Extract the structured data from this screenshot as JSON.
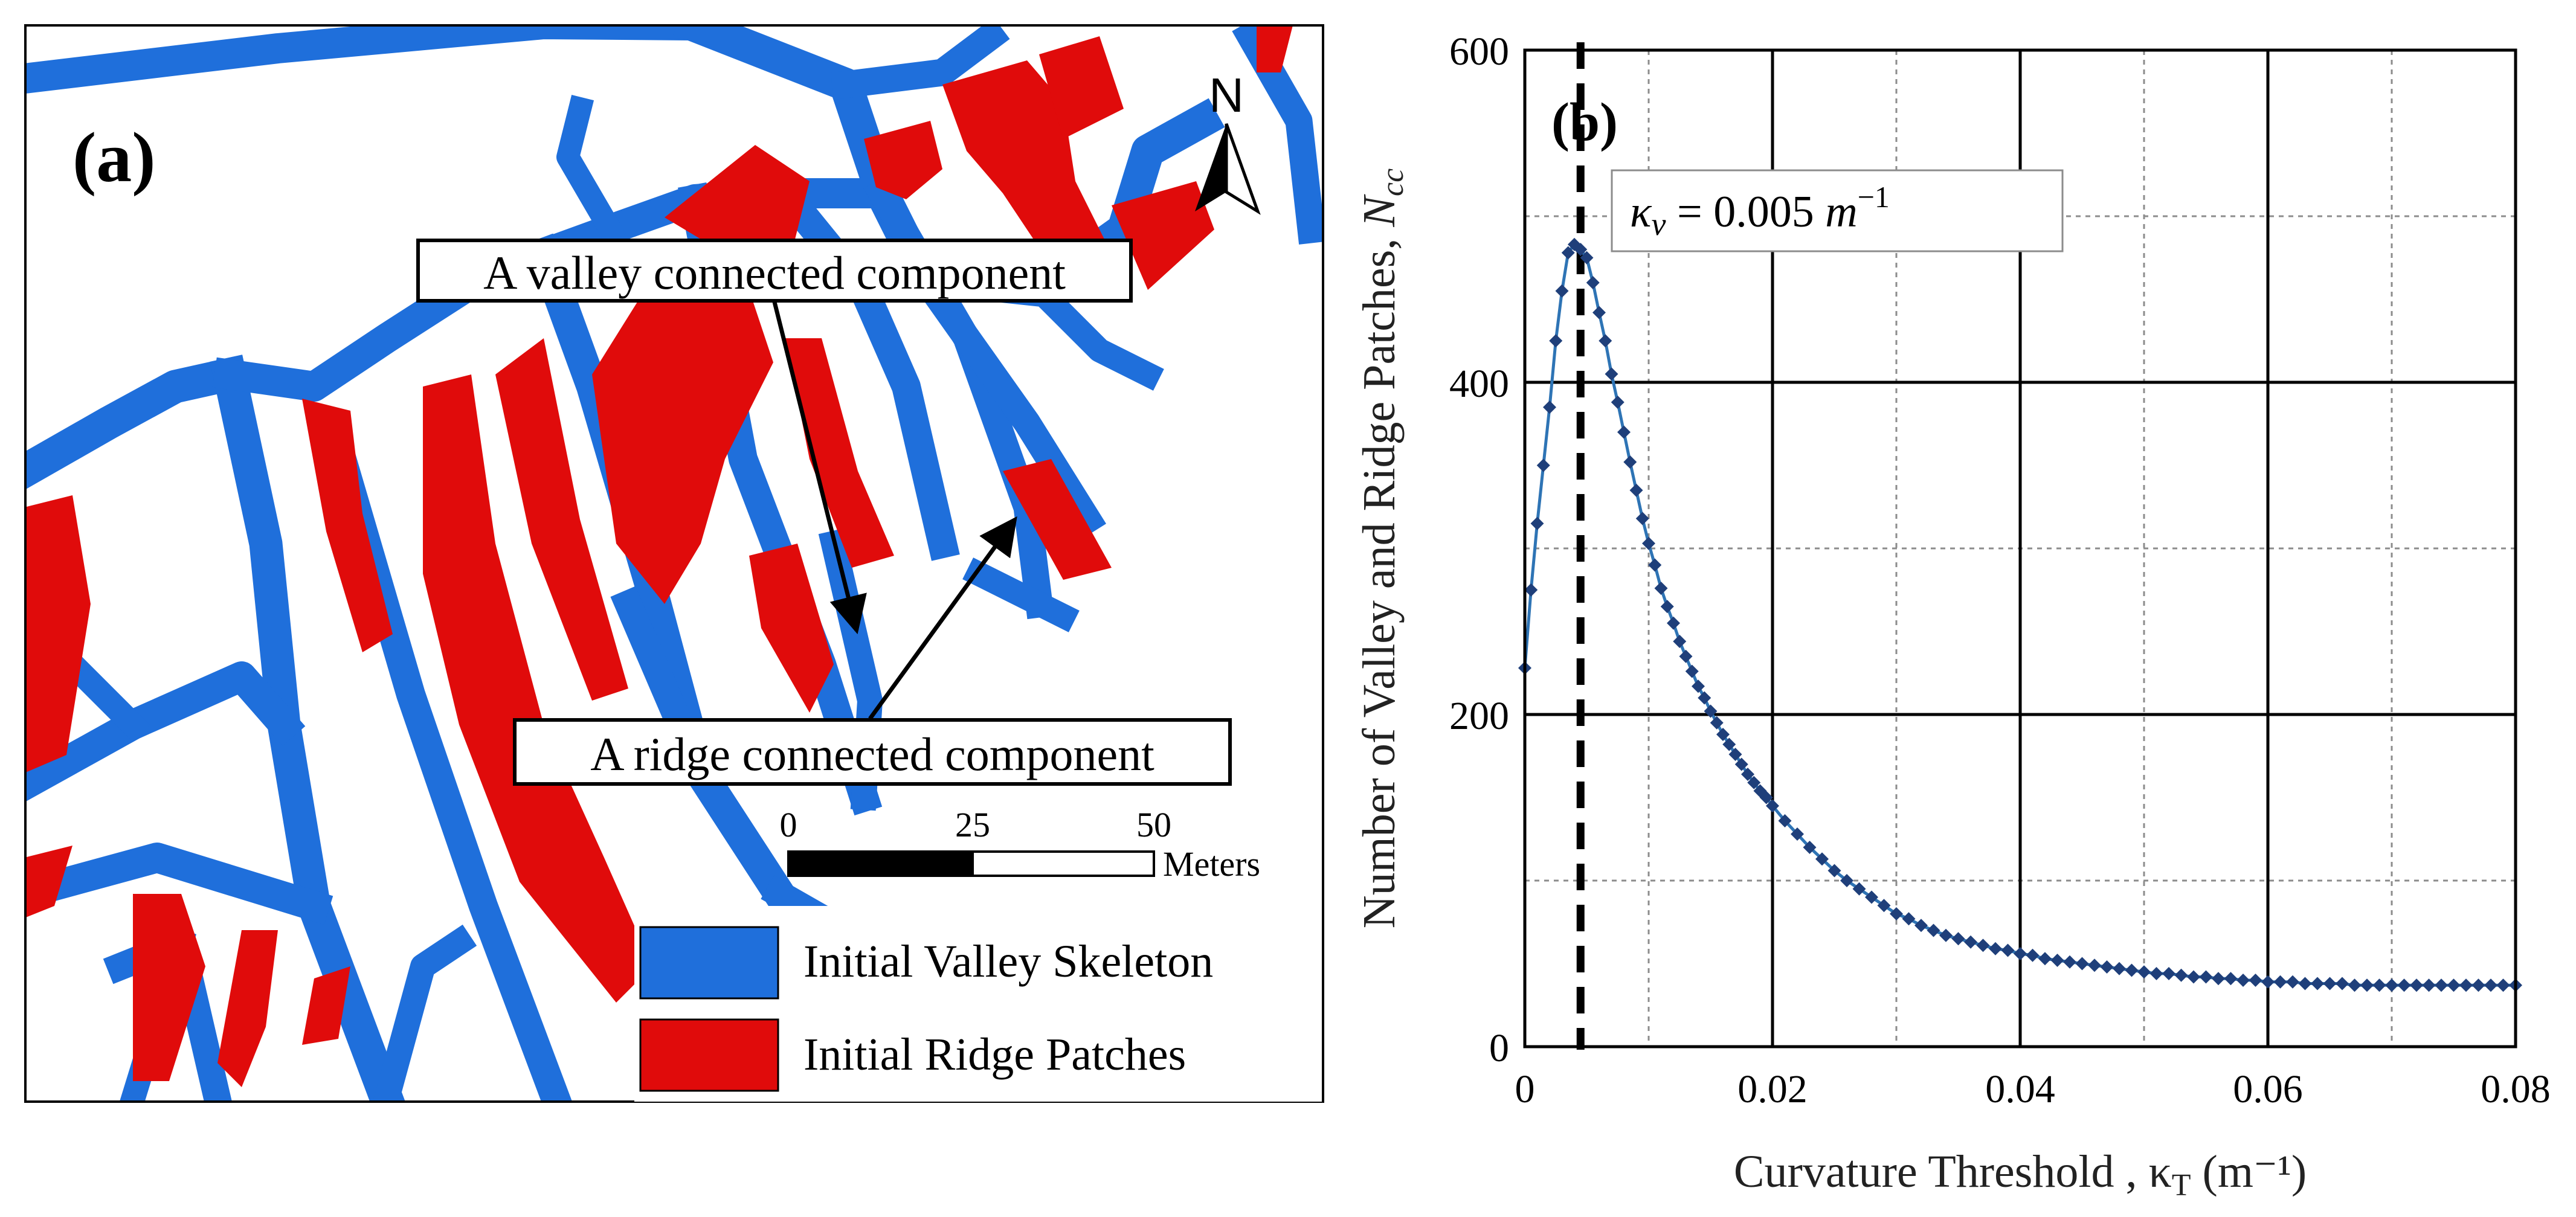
{
  "colors": {
    "valley": "#1f6fdb",
    "ridge": "#e00b0b",
    "series": "#2e74b5",
    "marker": "#1f3f7a",
    "grid_major": "#000000",
    "grid_minor": "#8c8c8c"
  },
  "map_panel": {
    "label": "(a)",
    "north_label": "N",
    "callout_valley": "A valley connected component",
    "callout_ridge": "A ridge connected component",
    "scale": {
      "ticks": [
        "0",
        "25",
        "50"
      ],
      "unit": "Meters"
    },
    "legend": [
      {
        "label": "Initial Valley Skeleton",
        "color": "#1f6fdb"
      },
      {
        "label": "Initial Ridge Patches",
        "color": "#e00b0b"
      }
    ]
  },
  "chart_data": {
    "type": "line",
    "panel_label": "(b)",
    "xlabel": "Curvature Threshold , κT (m⁻¹)",
    "xlabel_parts": {
      "prefix": "Curvature Threshold , κ",
      "sub": "T",
      "suffix": " (m⁻¹)"
    },
    "ylabel": "Number of  Valley and Ridge Patches, Ncc",
    "ylabel_parts": {
      "prefix": "Number of  Valley and Ridge Patches, ",
      "symbol": "N",
      "sub": "cc"
    },
    "xlim": [
      0,
      0.08
    ],
    "ylim": [
      0,
      600
    ],
    "xticks": [
      0,
      0.02,
      0.04,
      0.06,
      0.08
    ],
    "xtick_labels": [
      "0",
      "0.02",
      "0.04",
      "0.06",
      "0.08"
    ],
    "yticks": [
      0,
      200,
      400,
      600
    ],
    "ytick_labels": [
      "0",
      "200",
      "400",
      "600"
    ],
    "grid": "major solid, minor dashed",
    "annotation": {
      "text": "κv = 0.005 m⁻¹",
      "parts": {
        "k": "κ",
        "sub": "v",
        "eq": " = 0.005 ",
        "m": "m",
        "sup": "−1"
      },
      "x": 0.0045
    },
    "series": [
      {
        "name": "Ncc",
        "x": [
          0,
          0.0005,
          0.001,
          0.0015,
          0.002,
          0.0025,
          0.003,
          0.0035,
          0.004,
          0.0045,
          0.005,
          0.0055,
          0.006,
          0.0065,
          0.007,
          0.0075,
          0.008,
          0.0085,
          0.009,
          0.0095,
          0.01,
          0.0105,
          0.011,
          0.0115,
          0.012,
          0.0125,
          0.013,
          0.0135,
          0.014,
          0.0145,
          0.015,
          0.0155,
          0.016,
          0.0165,
          0.017,
          0.0175,
          0.018,
          0.0185,
          0.019,
          0.0195,
          0.02,
          0.021,
          0.022,
          0.023,
          0.024,
          0.025,
          0.026,
          0.027,
          0.028,
          0.029,
          0.03,
          0.031,
          0.032,
          0.033,
          0.034,
          0.035,
          0.036,
          0.037,
          0.038,
          0.039,
          0.04,
          0.041,
          0.042,
          0.043,
          0.044,
          0.045,
          0.046,
          0.047,
          0.048,
          0.049,
          0.05,
          0.051,
          0.052,
          0.053,
          0.054,
          0.055,
          0.056,
          0.057,
          0.058,
          0.059,
          0.06,
          0.061,
          0.062,
          0.063,
          0.064,
          0.065,
          0.066,
          0.067,
          0.068,
          0.069,
          0.07,
          0.071,
          0.072,
          0.073,
          0.074,
          0.075,
          0.076,
          0.077,
          0.078,
          0.079,
          0.08
        ],
        "y": [
          228,
          275,
          315,
          350,
          385,
          425,
          455,
          478,
          483,
          480,
          475,
          460,
          442,
          425,
          405,
          388,
          370,
          352,
          335,
          318,
          303,
          290,
          276,
          265,
          255,
          244,
          235,
          226,
          217,
          210,
          202,
          195,
          188,
          182,
          176,
          170,
          164,
          159,
          154,
          150,
          145,
          136,
          128,
          120,
          113,
          106,
          100,
          95,
          90,
          85,
          80,
          77,
          73,
          70,
          67,
          65,
          63,
          61,
          59,
          58,
          56,
          55,
          53,
          52,
          51,
          50,
          49,
          48,
          47,
          46,
          45,
          44,
          44,
          43,
          42,
          42,
          41,
          41,
          40,
          40,
          39,
          39,
          39,
          38,
          38,
          38,
          38,
          37,
          37,
          37,
          37,
          37,
          37,
          37,
          37,
          37,
          37,
          37,
          37,
          37,
          37
        ]
      }
    ]
  }
}
